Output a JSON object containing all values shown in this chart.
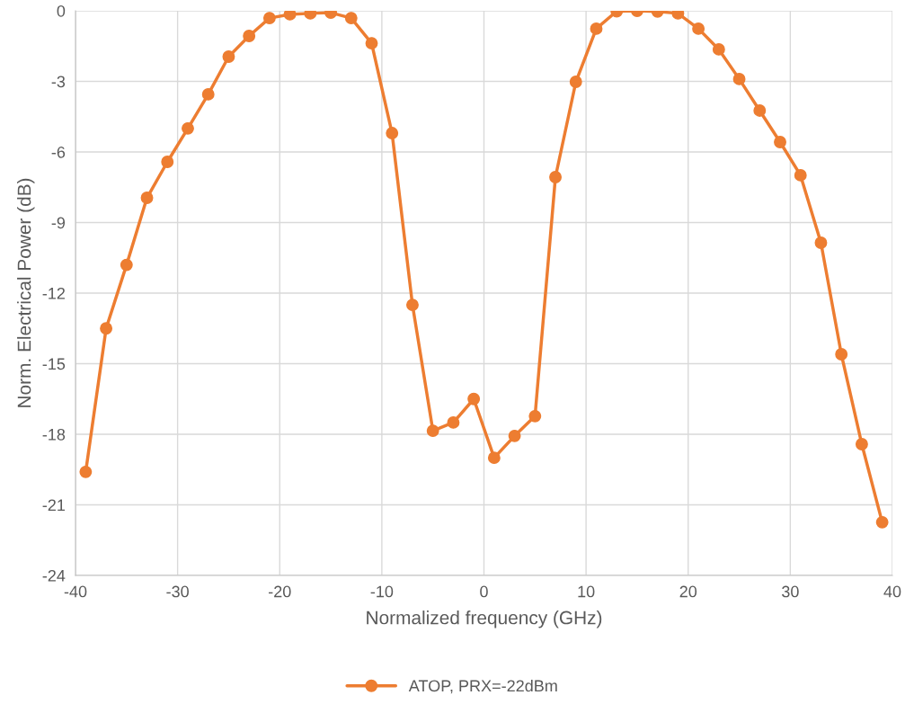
{
  "chart_data": {
    "type": "line",
    "xlabel": "Normalized frequency (GHz)",
    "ylabel": "Norm. Electrical Power (dB)",
    "xlim": [
      -40,
      40
    ],
    "xticks": [
      -40,
      -30,
      -20,
      -10,
      0,
      10,
      20,
      30,
      40
    ],
    "ylim": [
      -24,
      0
    ],
    "yticks": [
      -24,
      -21,
      -18,
      -15,
      -12,
      -9,
      -6,
      -3,
      0
    ],
    "grid": true,
    "legend": "bottom",
    "marker": "circle",
    "line_style": "solid",
    "series": [
      {
        "name": "ATOP, PRX=-22dBm",
        "color": "#ed7d31",
        "x": [
          -39,
          -37,
          -35,
          -33,
          -31,
          -29,
          -27,
          -25,
          -23,
          -21,
          -19,
          -17,
          -15,
          -13,
          -11,
          -9,
          -7,
          -5,
          -3,
          -1,
          1,
          3,
          5,
          7,
          9,
          11,
          13,
          15,
          17,
          19,
          21,
          23,
          25,
          27,
          29,
          31,
          33,
          35,
          37,
          39
        ],
        "values": [
          -19.6,
          -13.5,
          -10.8,
          -7.95,
          -6.42,
          -5.0,
          -3.55,
          -1.95,
          -1.07,
          -0.31,
          -0.15,
          -0.11,
          -0.08,
          -0.31,
          -1.38,
          -5.2,
          -12.5,
          -17.85,
          -17.5,
          -16.5,
          -19.0,
          -18.07,
          -17.23,
          -7.07,
          -3.02,
          -0.76,
          -0.02,
          0,
          -0.03,
          -0.11,
          -0.76,
          -1.64,
          -2.9,
          -4.24,
          -5.58,
          -6.99,
          -9.86,
          -14.6,
          -18.42,
          -21.74
        ]
      }
    ]
  }
}
